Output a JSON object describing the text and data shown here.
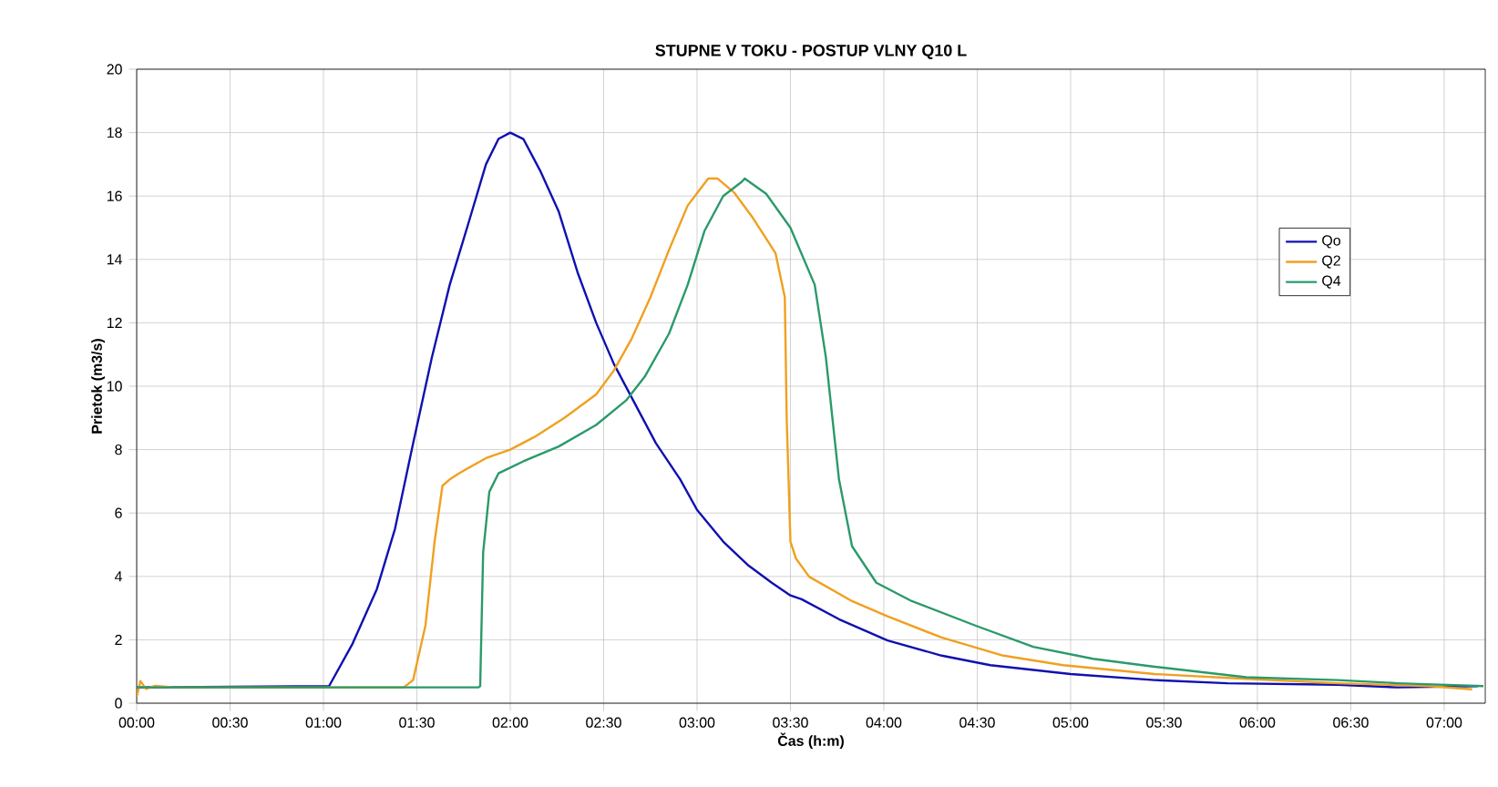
{
  "chart_data": {
    "type": "line",
    "title": "STUPNE V TOKU - POSTUP VLNY Q10 L",
    "xlabel": "Čas (h:m)",
    "ylabel": "Prietok (m3/s)",
    "xlim": [
      0,
      7.22
    ],
    "ylim": [
      0,
      20
    ],
    "xticks": [
      {
        "value": 0,
        "label": "00:00"
      },
      {
        "value": 0.5,
        "label": "00:30"
      },
      {
        "value": 1,
        "label": "01:00"
      },
      {
        "value": 1.5,
        "label": "01:30"
      },
      {
        "value": 2,
        "label": "02:00"
      },
      {
        "value": 2.5,
        "label": "02:30"
      },
      {
        "value": 3,
        "label": "03:00"
      },
      {
        "value": 3.5,
        "label": "03:30"
      },
      {
        "value": 4,
        "label": "04:00"
      },
      {
        "value": 4.5,
        "label": "04:30"
      },
      {
        "value": 5,
        "label": "05:00"
      },
      {
        "value": 5.5,
        "label": "05:30"
      },
      {
        "value": 6,
        "label": "06:00"
      },
      {
        "value": 6.5,
        "label": "06:30"
      },
      {
        "value": 7,
        "label": "07:00"
      }
    ],
    "yticks": [
      0,
      2,
      4,
      6,
      8,
      10,
      12,
      14,
      16,
      18,
      20
    ],
    "grid": true,
    "legend": "right",
    "line_style": "solid",
    "series": [
      {
        "name": "Qo",
        "color": "#1010b0",
        "x": [
          0,
          1.03,
          1.156,
          1.286,
          1.383,
          1.48,
          1.58,
          1.676,
          1.774,
          1.87,
          1.937,
          2.0,
          2.07,
          2.16,
          2.26,
          2.36,
          2.46,
          2.555,
          2.69,
          2.78,
          2.91,
          3.0,
          3.14,
          3.27,
          3.4,
          3.5,
          3.56,
          3.76,
          4.02,
          4.31,
          4.57,
          5.0,
          5.45,
          5.84,
          6.43,
          6.75,
          7.18
        ],
        "values": [
          0.5,
          0.54,
          1.88,
          3.6,
          5.5,
          8.2,
          10.9,
          13.2,
          15.1,
          17.0,
          17.8,
          18.0,
          17.8,
          16.8,
          15.5,
          13.6,
          12.0,
          10.7,
          9.2,
          8.2,
          7.06,
          6.1,
          5.1,
          4.37,
          3.8,
          3.4,
          3.28,
          2.65,
          1.98,
          1.5,
          1.2,
          0.92,
          0.73,
          0.63,
          0.58,
          0.5,
          0.54
        ]
      },
      {
        "name": "Q2",
        "color": "#f0a020",
        "x": [
          0,
          0.02,
          0.05,
          0.1,
          0.2,
          1.43,
          1.48,
          1.546,
          1.595,
          1.637,
          1.676,
          1.725,
          1.87,
          2.0,
          2.13,
          2.29,
          2.46,
          2.555,
          2.65,
          2.75,
          2.85,
          2.95,
          3.06,
          3.11,
          3.2,
          3.3,
          3.42,
          3.47,
          3.48,
          3.5,
          3.53,
          3.6,
          3.83,
          4.02,
          4.31,
          4.64,
          4.96,
          5.45,
          5.94,
          6.43,
          6.92,
          7.15
        ],
        "values": [
          0.2,
          0.7,
          0.45,
          0.55,
          0.5,
          0.5,
          0.73,
          2.45,
          5.1,
          6.86,
          7.06,
          7.25,
          7.73,
          8.0,
          8.4,
          9.0,
          9.74,
          10.5,
          11.5,
          12.8,
          14.3,
          15.7,
          16.55,
          16.55,
          16.1,
          15.3,
          14.2,
          12.8,
          9.0,
          5.1,
          4.56,
          3.99,
          3.22,
          2.74,
          2.07,
          1.5,
          1.2,
          0.92,
          0.77,
          0.63,
          0.54,
          0.44
        ]
      },
      {
        "name": "Q4",
        "color": "#2a9a6a",
        "x": [
          0,
          1.83,
          1.839,
          1.855,
          1.888,
          1.937,
          2.07,
          2.26,
          2.46,
          2.62,
          2.72,
          2.85,
          2.95,
          3.04,
          3.14,
          3.24,
          3.255,
          3.37,
          3.5,
          3.63,
          3.69,
          3.76,
          3.83,
          3.96,
          4.15,
          4.49,
          4.8,
          5.12,
          5.45,
          5.94,
          6.43,
          6.75,
          7.21
        ],
        "values": [
          0.5,
          0.5,
          0.54,
          4.76,
          6.67,
          7.25,
          7.63,
          8.1,
          8.78,
          9.55,
          10.3,
          11.66,
          13.2,
          14.9,
          16.0,
          16.45,
          16.55,
          16.07,
          15.0,
          13.2,
          10.9,
          7.06,
          4.95,
          3.8,
          3.22,
          2.45,
          1.78,
          1.4,
          1.15,
          0.82,
          0.73,
          0.63,
          0.54
        ]
      }
    ]
  }
}
